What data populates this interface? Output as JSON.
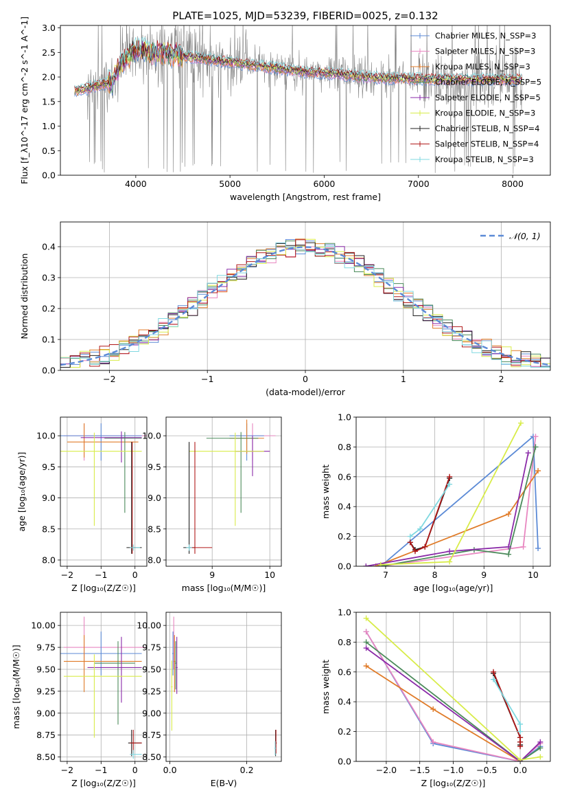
{
  "figure": {
    "title": "PLATE=1025, MJD=53239, FIBERID=0025, z=0.132"
  },
  "colors": {
    "chabrier_miles": "#5b8ad6",
    "salpeter_miles": "#e886c0",
    "kroupa_miles": "#e07b28",
    "chabrier_elodie": "#4a8a5a",
    "salpeter_elodie": "#8a2aa8",
    "kroupa_elodie": "#d8ec48",
    "chabrier_stelib": "#202020",
    "salpeter_stelib": "#b01818",
    "kroupa_stelib": "#7fd8e0",
    "data_grey": "#808080"
  },
  "chart_data": [
    {
      "id": "spectrum",
      "type": "line",
      "xlabel": "wavelength [Angstrom, rest frame]",
      "ylabel": "Flux [f_λ10^-17 erg cm^-2 s^-1 A^-1]",
      "xlim": [
        3200,
        8400
      ],
      "ylim": [
        0,
        3.05
      ],
      "xticks": [
        4000,
        5000,
        6000,
        7000,
        8000
      ],
      "yticks": [
        0.0,
        0.5,
        1.0,
        1.5,
        2.0,
        2.5,
        3.0
      ],
      "legend_position": "right",
      "legend": [
        {
          "label": "Chabrier MILES, N_SSP=3",
          "key": "chabrier_miles"
        },
        {
          "label": "Salpeter MILES, N_SSP=3",
          "key": "salpeter_miles"
        },
        {
          "label": "Kroupa MILES, N_SSP=3",
          "key": "kroupa_miles"
        },
        {
          "label": "Chabrier ELODIE, N_SSP=5",
          "key": "chabrier_elodie"
        },
        {
          "label": "Salpeter ELODIE, N_SSP=5",
          "key": "salpeter_elodie"
        },
        {
          "label": "Kroupa ELODIE, N_SSP=3",
          "key": "kroupa_elodie"
        },
        {
          "label": "Chabrier STELIB, N_SSP=4",
          "key": "chabrier_stelib"
        },
        {
          "label": "Salpeter STELIB, N_SSP=4",
          "key": "salpeter_stelib"
        },
        {
          "label": "Kroupa STELIB, N_SSP=3",
          "key": "kroupa_stelib"
        }
      ],
      "model_continuum": {
        "x": [
          3350,
          3450,
          3550,
          3650,
          3750,
          3850,
          4000,
          4200,
          4400,
          4600,
          4800,
          5000,
          5200,
          5400,
          5600,
          5800,
          6000,
          6200,
          6400,
          6600,
          6800,
          7000,
          7200,
          7400,
          7600,
          7800,
          8000,
          8100
        ],
        "y": [
          1.7,
          1.75,
          1.8,
          1.85,
          1.9,
          2.3,
          2.55,
          2.5,
          2.45,
          2.4,
          2.35,
          2.3,
          2.25,
          2.2,
          2.15,
          2.1,
          2.08,
          2.05,
          2.0,
          1.98,
          1.97,
          1.96,
          1.95,
          1.95,
          1.95,
          1.95,
          1.95,
          1.95
        ]
      }
    },
    {
      "id": "residuals",
      "type": "area",
      "xlabel": "(data-model)/error",
      "ylabel": "Normed distribution",
      "xlim": [
        -2.5,
        2.5
      ],
      "ylim": [
        0,
        0.48
      ],
      "xticks": [
        -2,
        -1,
        0,
        1,
        2
      ],
      "yticks": [
        0.0,
        0.1,
        0.2,
        0.3,
        0.4
      ],
      "grid": true,
      "legend_position": "top-right",
      "legend": [
        {
          "label": "𝒩(0, 1)",
          "key": "chabrier_miles",
          "dashed": true
        }
      ],
      "hist_bin_width": 0.1
    },
    {
      "id": "age_vs_Z",
      "type": "scatter",
      "xlabel": "Z [log₁₀(Z/Z☉)]",
      "ylabel": "age  [log₁₀(age/yr)]",
      "xlim": [
        -2.2,
        0.35
      ],
      "ylim": [
        7.9,
        10.3
      ],
      "xticks": [
        -2,
        -1,
        0
      ],
      "yticks": [
        8.0,
        8.5,
        9.0,
        9.5,
        10.0
      ],
      "grid": true,
      "errorbars": [
        {
          "key": "salpeter_miles",
          "x": -1.5,
          "xerr": [
            0.6,
            1.9
          ],
          "y": 10.0,
          "yerr": [
            0.4,
            0.2
          ]
        },
        {
          "key": "chabrier_miles",
          "x": -1.0,
          "xerr": [
            1.2,
            1.2
          ],
          "y": 10.0,
          "yerr": [
            0.4,
            0.2
          ]
        },
        {
          "key": "kroupa_miles",
          "x": -1.5,
          "xerr": [
            0.5,
            1.6
          ],
          "y": 9.9,
          "yerr": [
            0.25,
            0.3
          ]
        },
        {
          "key": "chabrier_elodie",
          "x": -0.3,
          "xerr": [
            0.6,
            0.5
          ],
          "y": 9.96,
          "yerr": [
            1.2,
            0.1
          ]
        },
        {
          "key": "salpeter_elodie",
          "x": -0.4,
          "xerr": [
            1.2,
            0.6
          ],
          "y": 9.97,
          "yerr": [
            0.4,
            0.1
          ]
        },
        {
          "key": "kroupa_elodie",
          "x": -1.2,
          "xerr": [
            1.0,
            1.4
          ],
          "y": 9.75,
          "yerr": [
            1.2,
            0.3
          ]
        },
        {
          "key": "chabrier_stelib",
          "x": -0.1,
          "xerr": [
            0.15,
            0.3
          ],
          "y": 8.2,
          "yerr": [
            0.1,
            1.7
          ]
        },
        {
          "key": "salpeter_stelib",
          "x": -0.08,
          "xerr": [
            0.05,
            0.1
          ],
          "y": 8.2,
          "yerr": [
            0.1,
            1.7
          ]
        },
        {
          "key": "kroupa_stelib",
          "x": -0.05,
          "xerr": [
            0.1,
            0.2
          ],
          "y": 8.2,
          "yerr": [
            0.05,
            0.05
          ]
        }
      ]
    },
    {
      "id": "age_vs_mass",
      "type": "scatter",
      "xlabel": "mass [log₁₀(M/M☉)]",
      "ylabel": "",
      "xlim": [
        8.2,
        10.2
      ],
      "ylim": [
        7.9,
        10.3
      ],
      "xticks": [
        9,
        10
      ],
      "yticks": [
        8.0,
        8.5,
        9.0,
        9.5,
        10.0
      ],
      "grid": true,
      "errorbars": [
        {
          "key": "salpeter_miles",
          "x": 9.7,
          "xerr": [
            0.3,
            0.4
          ],
          "y": 10.0,
          "yerr": [
            0.4,
            0.2
          ]
        },
        {
          "key": "chabrier_miles",
          "x": 9.6,
          "xerr": [
            0.3,
            0.3
          ],
          "y": 10.0,
          "yerr": [
            0.4,
            0.2
          ]
        },
        {
          "key": "kroupa_miles",
          "x": 9.6,
          "xerr": [
            0.3,
            0.3
          ],
          "y": 9.96,
          "yerr": [
            0.25,
            0.3
          ]
        },
        {
          "key": "chabrier_elodie",
          "x": 9.5,
          "xerr": [
            0.6,
            0.3
          ],
          "y": 9.96,
          "yerr": [
            1.2,
            0.1
          ]
        },
        {
          "key": "salpeter_elodie",
          "x": 9.7,
          "xerr": [
            0.3,
            0.3
          ],
          "y": 9.75,
          "yerr": [
            0.4,
            0.25
          ]
        },
        {
          "key": "kroupa_elodie",
          "x": 9.4,
          "xerr": [
            0.8,
            0.5
          ],
          "y": 9.75,
          "yerr": [
            1.2,
            0.3
          ]
        },
        {
          "key": "chabrier_stelib",
          "x": 8.6,
          "xerr": [
            0.1,
            0.1
          ],
          "y": 8.2,
          "yerr": [
            0.1,
            1.7
          ]
        },
        {
          "key": "salpeter_stelib",
          "x": 8.7,
          "xerr": [
            0.1,
            0.3
          ],
          "y": 8.2,
          "yerr": [
            0.1,
            1.7
          ]
        },
        {
          "key": "kroupa_stelib",
          "x": 8.6,
          "xerr": [
            0.05,
            0.05
          ],
          "y": 8.2,
          "yerr": [
            0.05,
            0.05
          ]
        }
      ]
    },
    {
      "id": "weight_vs_age",
      "type": "line",
      "xlabel": "age  [log₁₀(age/yr)]",
      "ylabel": "mass weight",
      "xlim": [
        6.4,
        10.35
      ],
      "ylim": [
        0,
        1.0
      ],
      "xticks": [
        7,
        8,
        9,
        10
      ],
      "yticks": [
        0.0,
        0.2,
        0.4,
        0.6,
        0.8,
        1.0
      ],
      "grid": true,
      "series": [
        {
          "key": "chabrier_miles",
          "x": [
            6.9,
            10.0,
            10.1
          ],
          "y": [
            0.0,
            0.87,
            0.12
          ]
        },
        {
          "key": "salpeter_miles",
          "x": [
            6.9,
            9.8,
            10.05
          ],
          "y": [
            0.0,
            0.13,
            0.87
          ]
        },
        {
          "key": "kroupa_miles",
          "x": [
            6.8,
            9.5,
            10.1
          ],
          "y": [
            0.0,
            0.35,
            0.64
          ]
        },
        {
          "key": "chabrier_elodie",
          "x": [
            6.9,
            8.8,
            9.5,
            10.05
          ],
          "y": [
            0.0,
            0.11,
            0.08,
            0.8
          ]
        },
        {
          "key": "salpeter_elodie",
          "x": [
            6.6,
            8.3,
            9.5,
            9.9
          ],
          "y": [
            0.0,
            0.1,
            0.13,
            0.76
          ]
        },
        {
          "key": "kroupa_elodie",
          "x": [
            6.9,
            8.3,
            9.75
          ],
          "y": [
            0.01,
            0.03,
            0.96
          ]
        },
        {
          "key": "chabrier_stelib",
          "x": [
            7.5,
            7.6,
            7.8,
            8.3
          ],
          "y": [
            0.16,
            0.11,
            0.13,
            0.59
          ]
        },
        {
          "key": "salpeter_stelib",
          "x": [
            7.5,
            7.6,
            7.8,
            8.3
          ],
          "y": [
            0.16,
            0.1,
            0.13,
            0.6
          ]
        },
        {
          "key": "kroupa_stelib",
          "x": [
            7.5,
            7.7,
            8.3
          ],
          "y": [
            0.2,
            0.25,
            0.55
          ]
        }
      ]
    },
    {
      "id": "mass_vs_Z",
      "type": "scatter",
      "xlabel": "Z [log₁₀(Z/Z☉)]",
      "ylabel": "mass [log₁₀(M/M☉)]",
      "xlim": [
        -2.2,
        0.35
      ],
      "ylim": [
        8.45,
        10.15
      ],
      "xticks": [
        -2,
        -1,
        0
      ],
      "yticks": [
        8.5,
        8.75,
        9.0,
        9.25,
        9.5,
        9.75,
        10.0
      ],
      "grid": true,
      "errorbars": [
        {
          "key": "salpeter_miles",
          "x": -1.5,
          "xerr": [
            0.6,
            1.8
          ],
          "y": 9.75,
          "yerr": [
            0.25,
            0.35
          ]
        },
        {
          "key": "chabrier_miles",
          "x": -1.0,
          "xerr": [
            1.2,
            1.2
          ],
          "y": 9.68,
          "yerr": [
            0.25,
            0.25
          ]
        },
        {
          "key": "kroupa_miles",
          "x": -1.5,
          "xerr": [
            0.6,
            1.7
          ],
          "y": 9.59,
          "yerr": [
            0.35,
            0.3
          ]
        },
        {
          "key": "chabrier_elodie",
          "x": -0.5,
          "xerr": [
            0.7,
            0.5
          ],
          "y": 9.57,
          "yerr": [
            0.7,
            0.25
          ]
        },
        {
          "key": "salpeter_elodie",
          "x": -0.4,
          "xerr": [
            1.0,
            0.6
          ],
          "y": 9.52,
          "yerr": [
            0.4,
            0.35
          ]
        },
        {
          "key": "kroupa_elodie",
          "x": -1.2,
          "xerr": [
            0.9,
            1.4
          ],
          "y": 9.42,
          "yerr": [
            0.7,
            0.25
          ]
        },
        {
          "key": "chabrier_stelib",
          "x": -0.1,
          "xerr": [
            0.1,
            0.3
          ],
          "y": 8.66,
          "yerr": [
            0.15,
            0.15
          ]
        },
        {
          "key": "salpeter_stelib",
          "x": -0.05,
          "xerr": [
            0.1,
            0.25
          ],
          "y": 8.66,
          "yerr": [
            0.12,
            0.15
          ]
        },
        {
          "key": "kroupa_stelib",
          "x": -0.05,
          "xerr": [
            0.1,
            0.25
          ],
          "y": 8.53,
          "yerr": [
            0.05,
            0.05
          ]
        }
      ]
    },
    {
      "id": "mass_vs_ebv",
      "type": "scatter",
      "xlabel": "E(B-V)",
      "ylabel": "",
      "xlim": [
        -0.01,
        0.29
      ],
      "ylim": [
        8.45,
        10.15
      ],
      "xticks": [
        0.0,
        0.2
      ],
      "yticks": [
        8.5,
        8.75,
        9.0,
        9.25,
        9.5,
        9.75,
        10.0
      ],
      "grid": true,
      "errorbars": [
        {
          "key": "salpeter_miles",
          "x": 0.01,
          "xerr": [
            0.002,
            0.002
          ],
          "y": 9.75,
          "yerr": [
            0.25,
            0.35
          ]
        },
        {
          "key": "chabrier_miles",
          "x": 0.008,
          "xerr": [
            0.002,
            0.002
          ],
          "y": 9.68,
          "yerr": [
            0.25,
            0.25
          ]
        },
        {
          "key": "kroupa_miles",
          "x": 0.012,
          "xerr": [
            0.002,
            0.002
          ],
          "y": 9.59,
          "yerr": [
            0.35,
            0.3
          ]
        },
        {
          "key": "chabrier_elodie",
          "x": 0.015,
          "xerr": [
            0.002,
            0.002
          ],
          "y": 9.57,
          "yerr": [
            0.3,
            0.25
          ]
        },
        {
          "key": "salpeter_elodie",
          "x": 0.018,
          "xerr": [
            0.002,
            0.002
          ],
          "y": 9.52,
          "yerr": [
            0.3,
            0.35
          ]
        },
        {
          "key": "kroupa_elodie",
          "x": 0.005,
          "xerr": [
            0.002,
            0.002
          ],
          "y": 9.3,
          "yerr": [
            0.5,
            0.3
          ]
        },
        {
          "key": "chabrier_stelib",
          "x": 0.275,
          "xerr": [
            0.002,
            0.002
          ],
          "y": 8.66,
          "yerr": [
            0.15,
            0.15
          ]
        },
        {
          "key": "salpeter_stelib",
          "x": 0.276,
          "xerr": [
            0.002,
            0.002
          ],
          "y": 8.66,
          "yerr": [
            0.12,
            0.15
          ]
        },
        {
          "key": "kroupa_stelib",
          "x": 0.274,
          "xerr": [
            0.002,
            0.002
          ],
          "y": 8.6,
          "yerr": [
            0.08,
            0.08
          ]
        }
      ]
    },
    {
      "id": "weight_vs_Z",
      "type": "line",
      "xlabel": "Z [log₁₀(Z/Z☉)]",
      "ylabel": "mass weight",
      "xlim": [
        -2.45,
        0.45
      ],
      "ylim": [
        0,
        1.0
      ],
      "xticks": [
        -2.0,
        -1.5,
        -1.0,
        -0.5,
        0.0
      ],
      "yticks": [
        0.0,
        0.2,
        0.4,
        0.6,
        0.8,
        1.0
      ],
      "grid": true,
      "series": [
        {
          "key": "chabrier_miles",
          "x": [
            -2.3,
            -1.3,
            0.0,
            0.3
          ],
          "y": [
            0.87,
            0.12,
            0.0,
            0.1
          ]
        },
        {
          "key": "salpeter_miles",
          "x": [
            -2.3,
            -1.3,
            0.0,
            0.3
          ],
          "y": [
            0.87,
            0.13,
            0.0,
            0.12
          ]
        },
        {
          "key": "kroupa_miles",
          "x": [
            -2.3,
            -1.3,
            0.0
          ],
          "y": [
            0.64,
            0.35,
            0.0
          ]
        },
        {
          "key": "chabrier_elodie",
          "x": [
            -2.3,
            0.0,
            0.3
          ],
          "y": [
            0.8,
            0.0,
            0.09
          ]
        },
        {
          "key": "salpeter_elodie",
          "x": [
            -2.3,
            0.0,
            0.3
          ],
          "y": [
            0.76,
            0.0,
            0.13
          ]
        },
        {
          "key": "kroupa_elodie",
          "x": [
            -2.3,
            0.0,
            0.3
          ],
          "y": [
            0.96,
            0.01,
            0.03
          ]
        },
        {
          "key": "chabrier_stelib",
          "x": [
            -0.4,
            0.0,
            0.0,
            0.0
          ],
          "y": [
            0.59,
            0.16,
            0.13,
            0.11
          ]
        },
        {
          "key": "salpeter_stelib",
          "x": [
            -0.4,
            0.0,
            0.0,
            0.0
          ],
          "y": [
            0.6,
            0.16,
            0.13,
            0.1
          ]
        },
        {
          "key": "kroupa_stelib",
          "x": [
            -0.4,
            0.0,
            0.0
          ],
          "y": [
            0.55,
            0.25,
            0.2
          ]
        }
      ]
    }
  ]
}
